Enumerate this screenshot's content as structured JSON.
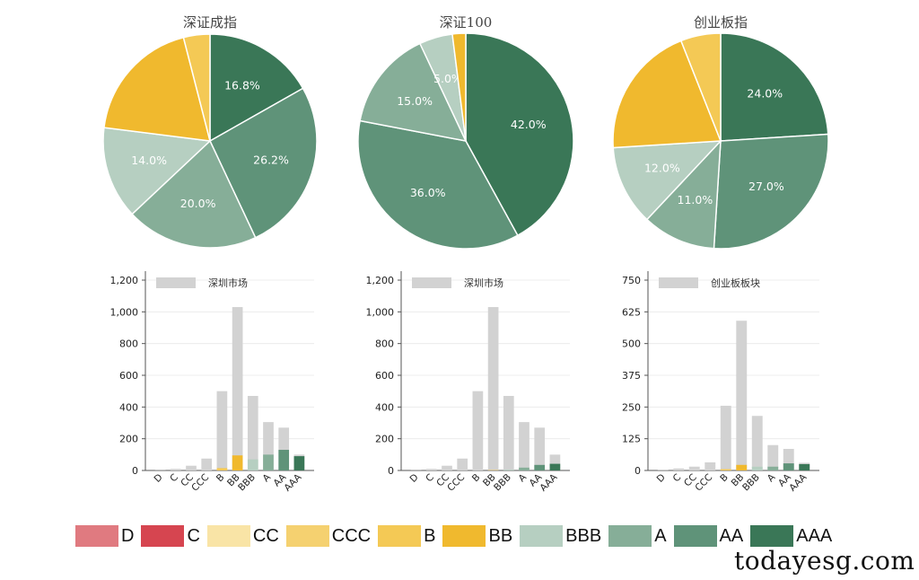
{
  "colors": {
    "D": "#e07a80",
    "C": "#d64550",
    "CC": "#f9e4a6",
    "CCC": "#f5d170",
    "B": "#f4c955",
    "BB": "#f0b92e",
    "BBB": "#b6cfc1",
    "A": "#86ae98",
    "AA": "#5f9379",
    "AAA": "#3a7757",
    "market_bar": "#d2d2d2",
    "grid": "#ececec"
  },
  "legend": [
    "D",
    "C",
    "CC",
    "CCC",
    "B",
    "BB",
    "BBB",
    "A",
    "AA",
    "AAA"
  ],
  "watermark": "todayesg.com",
  "chart_data": [
    {
      "type": "pie",
      "title": "深证成指",
      "slices": [
        {
          "rating": "AAA",
          "value": 16.8,
          "label": "16.8%"
        },
        {
          "rating": "AA",
          "value": 26.2,
          "label": "26.2%"
        },
        {
          "rating": "A",
          "value": 20.0,
          "label": "20.0%"
        },
        {
          "rating": "BBB",
          "value": 14.0,
          "label": "14.0%"
        },
        {
          "rating": "BB",
          "value": 19.0,
          "label": ""
        },
        {
          "rating": "B",
          "value": 4.0,
          "label": ""
        }
      ]
    },
    {
      "type": "pie",
      "title": "深证100",
      "slices": [
        {
          "rating": "AAA",
          "value": 42.0,
          "label": "42.0%"
        },
        {
          "rating": "AA",
          "value": 36.0,
          "label": "36.0%"
        },
        {
          "rating": "A",
          "value": 15.0,
          "label": "15.0%"
        },
        {
          "rating": "BBB",
          "value": 5.0,
          "label": "5.0%"
        },
        {
          "rating": "BB",
          "value": 2.0,
          "label": ""
        }
      ]
    },
    {
      "type": "pie",
      "title": "创业板指",
      "slices": [
        {
          "rating": "AAA",
          "value": 24.0,
          "label": "24.0%"
        },
        {
          "rating": "AA",
          "value": 27.0,
          "label": "27.0%"
        },
        {
          "rating": "A",
          "value": 11.0,
          "label": "11.0%"
        },
        {
          "rating": "BBB",
          "value": 12.0,
          "label": "12.0%"
        },
        {
          "rating": "BB",
          "value": 20.0,
          "label": ""
        },
        {
          "rating": "B",
          "value": 6.0,
          "label": ""
        }
      ]
    },
    {
      "type": "bar",
      "legend_label": "深圳市场",
      "categories": [
        "D",
        "C",
        "CC",
        "CCC",
        "B",
        "BB",
        "BBB",
        "A",
        "AA",
        "AAA"
      ],
      "ylim": [
        0,
        1200
      ],
      "yticks": [
        0,
        200,
        400,
        600,
        800,
        1000,
        1200
      ],
      "ytick_labels": [
        "0",
        "200",
        "400",
        "600",
        "800",
        "1,000",
        "1,200"
      ],
      "series": [
        {
          "name": "深圳市场",
          "values": [
            1,
            10,
            30,
            75,
            500,
            1030,
            470,
            305,
            270,
            100
          ]
        },
        {
          "values": [
            0,
            0,
            0,
            0,
            15,
            95,
            70,
            100,
            130,
            90
          ]
        }
      ]
    },
    {
      "type": "bar",
      "legend_label": "深圳市场",
      "categories": [
        "D",
        "C",
        "CC",
        "CCC",
        "B",
        "BB",
        "BBB",
        "A",
        "AA",
        "AAA"
      ],
      "ylim": [
        0,
        1200
      ],
      "yticks": [
        0,
        200,
        400,
        600,
        800,
        1000,
        1200
      ],
      "ytick_labels": [
        "0",
        "200",
        "400",
        "600",
        "800",
        "1,000",
        "1,200"
      ],
      "series": [
        {
          "name": "深圳市场",
          "values": [
            1,
            10,
            30,
            75,
            500,
            1030,
            470,
            305,
            270,
            100
          ]
        },
        {
          "values": [
            0,
            0,
            0,
            0,
            0,
            2,
            5,
            18,
            35,
            42
          ]
        }
      ]
    },
    {
      "type": "bar",
      "legend_label": "创业板板块",
      "categories": [
        "D",
        "C",
        "CC",
        "CCC",
        "B",
        "BB",
        "BBB",
        "A",
        "AA",
        "AAA"
      ],
      "ylim": [
        0,
        750
      ],
      "yticks": [
        0,
        125,
        250,
        375,
        500,
        625,
        750
      ],
      "ytick_labels": [
        "0",
        "125",
        "250",
        "375",
        "500",
        "625",
        "750"
      ],
      "series": [
        {
          "name": "创业板板块",
          "values": [
            1,
            8,
            15,
            32,
            255,
            590,
            215,
            100,
            85,
            30
          ]
        },
        {
          "values": [
            0,
            0,
            0,
            0,
            5,
            22,
            15,
            15,
            28,
            25
          ]
        }
      ]
    }
  ]
}
